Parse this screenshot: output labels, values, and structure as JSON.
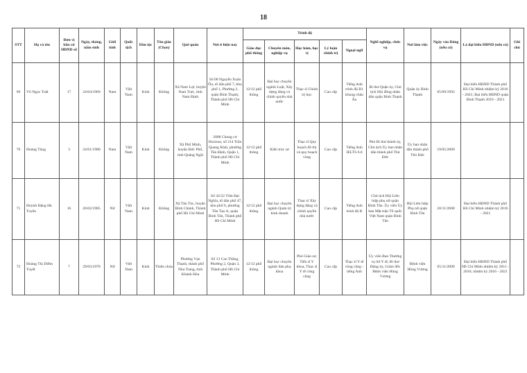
{
  "page_number": "18",
  "headers": {
    "stt": "STT",
    "name": "Họ và tên",
    "unit": "Đơn vị bầu cử HĐND số",
    "dob": "Ngày, tháng, năm sinh",
    "gender": "Giới tính",
    "nationality": "Quốc tịch",
    "ethnicity": "Dân tộc",
    "religion": "Tôn giáo",
    "religion_note": "(Chọn)",
    "hometown": "Quê quán",
    "residence": "Nơi ở hiện nay",
    "education_group": "Trình độ",
    "general_edu": "Giáo dục phổ thông",
    "specialty": "Chuyên môn, nghiệp vụ",
    "academic": "Học hàm, học vị",
    "politics": "Lý luận chính trị",
    "language": "Ngoại ngữ",
    "occupation": "Nghề nghiệp, chức vụ",
    "workplace": "Nơi làm việc",
    "party_date": "Ngày vào Đảng (nếu có)",
    "delegate": "Là đại biểu HĐND (nếu có)",
    "note": "Ghi chú"
  },
  "rows": [
    {
      "stt": "69",
      "name": "Vũ Ngọc Tuất",
      "unit": "17",
      "dob": "24/04/1969",
      "gender": "Nam",
      "nationality": "Việt Nam",
      "ethnicity": "Kinh",
      "religion": "Không",
      "hometown": "Xã Nam Lợi, huyện Nam Trực, tỉnh Nam Định",
      "residence": "Số 08 Nguyễn Xuân Ôn, tổ dân phố 7, khu phố 1, Phường 2, quận Bình Thạnh, Thành phố Hồ Chí Minh",
      "general_edu": "12/12 phổ thông",
      "specialty": "Đại học chuyên ngành Luật, Xây dựng đảng và chính quyền nhà nước",
      "academic": "Thạc sĩ Chính trị học",
      "politics": "Cao cấp",
      "language": "Tiếng Anh trình độ B1 khung châu Âu",
      "occupation": "Bí thư Quận ủy, Chủ tịch Hội đồng nhân dân quận Bình Thạnh",
      "workplace": "Quận ủy Bình Thạnh",
      "party_date": "05/09/1992",
      "delegate": "Đại biểu HĐND Thành phố Hồ Chí Minh nhiệm kỳ 2016 - 2021; Đại biểu HĐND quận Bình Thạnh 2016 - 2021",
      "note": ""
    },
    {
      "stt": "70",
      "name": "Hoàng Tùng",
      "unit": "3",
      "dob": "24/01/1980",
      "gender": "Nam",
      "nationality": "Việt Nam",
      "ethnicity": "Kinh",
      "religion": "Không",
      "hometown": "Xã Phổ Minh, huyện Đức Phổ, tỉnh Quảng Ngãi",
      "residence": "2008 Chung cư Horizon, số 214 Trần Quang Khải, phường Tân Định, Quận 1, Thành phố Hồ Chí Minh",
      "general_edu": "12/12 phổ thông",
      "specialty": "Kiến trúc sư",
      "academic": "Thạc sĩ Quy hoạch đô thị và quy hoạch vùng",
      "politics": "Cao cấp",
      "language": "Tiếng Anh IELTS 6.0",
      "occupation": "Phó Bí thư thành ủy, Chủ tịch Ủy ban nhân dân thành phố Thủ Đức",
      "workplace": "Ủy ban nhân dân thành phố Thủ Đức",
      "party_date": "19/05/2000",
      "delegate": "",
      "note": ""
    },
    {
      "stt": "71",
      "name": "Huỳnh Đặng Hà Tuyên",
      "unit": "16",
      "dob": "26/02/1985",
      "gender": "Nữ",
      "nationality": "Việt Nam",
      "ethnicity": "Kinh",
      "religion": "Không",
      "hometown": "Xã Tân Túc, huyện Bình Chánh, Thành phố Hồ Chí Minh",
      "residence": "Số 42/22 Trần Đại Nghĩa, tổ dân phố 47, khu phố 6, phường Tân Tạo A, quận Bình Tân, Thành phố Hồ Chí Minh",
      "general_edu": "12/12 phổ thông",
      "specialty": "Đại học chuyên ngành Quản trị kinh doanh",
      "academic": "Thạc sĩ Xây dựng đảng và chính quyền nhà nước",
      "politics": "Cao cấp",
      "language": "Tiếng Anh trình độ B",
      "occupation": "Chủ tịch Hội Liên hiệp phụ nữ quận Bình Tân. Ủy viên Ủy ban Mặt trận Tổ quốc Việt Nam quận Bình Tân",
      "workplace": "Hội Liên hiệp Phụ nữ quận Bình Tân",
      "party_date": "20/11/2008",
      "delegate": "Đại biểu HĐND Thành phố Hồ Chí Minh nhiệm kỳ 2016 - 2021",
      "note": ""
    },
    {
      "stt": "72",
      "name": "Hoàng Thị Diễm Tuyết",
      "unit": "7",
      "dob": "29/03/1970",
      "gender": "Nữ",
      "nationality": "Việt Nam",
      "ethnicity": "Kinh",
      "religion": "Thiên chúa",
      "hometown": "Phường Vạn Thạnh, thành phố Nha Trang, tỉnh Khánh Hòa",
      "residence": "Số 13 Cao Thắng, Phường 2, Quận 3, Thành phố Hồ Chí Minh",
      "general_edu": "12/12 phổ thông",
      "specialty": "Đại học chuyên ngành Sản phụ khoa",
      "academic": "Phó Giáo sư, Tiến sĩ Y khoa, Thạc sĩ Y tế công cộng",
      "politics": "Cao cấp",
      "language": "Thạc sĩ Y tế công cộng - tiếng Anh",
      "occupation": "Ủy viên Ban Thường vụ Sở Y tế, Bí thư Đảng ủy, Giám đốc Bệnh viện Hùng Vương",
      "workplace": "Bệnh viện Hùng Vương",
      "party_date": "05/11/2009",
      "delegate": "Đại biểu HĐND Thành phố Hồ Chí Minh nhiệm kỳ 2011 - 2016; nhiệm kỳ 2016 - 2021",
      "note": ""
    }
  ]
}
